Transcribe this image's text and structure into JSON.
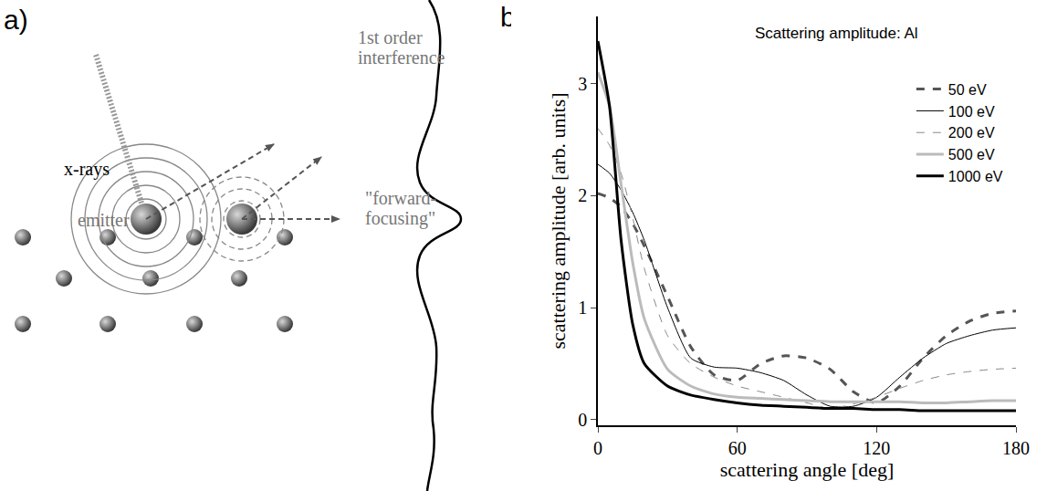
{
  "diagram": {
    "panel_label": "a)",
    "xray_label": "x-rays",
    "emitter_label": "emitter",
    "interference_label": [
      "1st order",
      "interference"
    ],
    "focusing_label": [
      "\"forward-",
      "focusing\""
    ]
  },
  "chart_data": {
    "type": "line",
    "panel_label": "b)",
    "annotation": "Scattering amplitude: Al",
    "x_label": "scattering angle [deg]",
    "y_label": "scattering amplitude [arb. units]",
    "x": [
      0,
      5,
      10,
      15,
      20,
      30,
      40,
      50,
      60,
      70,
      80,
      90,
      100,
      110,
      120,
      130,
      140,
      150,
      160,
      170,
      180
    ],
    "series": [
      {
        "name": "50 eV",
        "color": "#555555",
        "line_style": "dash",
        "values": [
          2.02,
          1.98,
          1.9,
          1.75,
          1.55,
          1.1,
          0.65,
          0.4,
          0.35,
          0.5,
          0.57,
          0.55,
          0.45,
          0.25,
          0.15,
          0.3,
          0.55,
          0.75,
          0.88,
          0.95,
          0.97
        ]
      },
      {
        "name": "100 eV",
        "color": "#000000",
        "line_style": "solid",
        "values": [
          2.28,
          2.2,
          2.05,
          1.85,
          1.6,
          1.0,
          0.55,
          0.47,
          0.46,
          0.42,
          0.35,
          0.22,
          0.12,
          0.12,
          0.2,
          0.38,
          0.55,
          0.68,
          0.75,
          0.8,
          0.82
        ]
      },
      {
        "name": "200 eV",
        "color": "#888888",
        "line_style": "dash",
        "values": [
          2.6,
          2.45,
          2.2,
          1.8,
          1.35,
          0.75,
          0.5,
          0.38,
          0.3,
          0.25,
          0.2,
          0.15,
          0.1,
          0.14,
          0.2,
          0.28,
          0.35,
          0.4,
          0.43,
          0.45,
          0.46
        ]
      },
      {
        "name": "500 eV",
        "color": "#bbbbbb",
        "line_style": "solid",
        "values": [
          3.1,
          2.8,
          2.1,
          1.4,
          0.9,
          0.45,
          0.3,
          0.23,
          0.2,
          0.19,
          0.18,
          0.17,
          0.16,
          0.16,
          0.16,
          0.16,
          0.15,
          0.15,
          0.16,
          0.17,
          0.17
        ]
      },
      {
        "name": "1000 eV",
        "color": "#000000",
        "line_style": "solid",
        "values": [
          3.38,
          2.8,
          1.6,
          0.85,
          0.5,
          0.3,
          0.22,
          0.18,
          0.15,
          0.13,
          0.12,
          0.11,
          0.1,
          0.1,
          0.09,
          0.09,
          0.08,
          0.08,
          0.08,
          0.08,
          0.08
        ]
      }
    ],
    "xlim": [
      0,
      180
    ],
    "xticks": [
      0,
      60,
      120,
      180
    ],
    "ylim": [
      -0.05,
      3.6
    ],
    "yticks": [
      0,
      1,
      2,
      3
    ],
    "grid": false,
    "legend": "top-right"
  }
}
